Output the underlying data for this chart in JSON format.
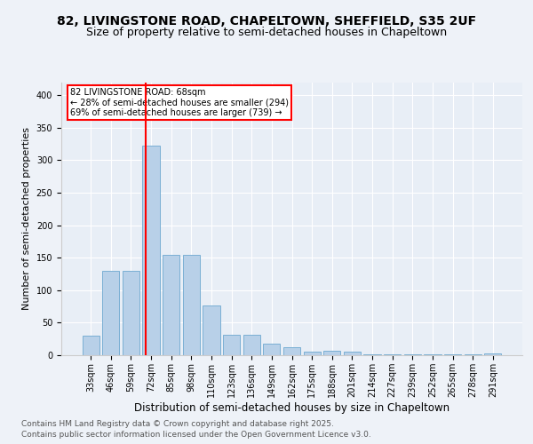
{
  "title1": "82, LIVINGSTONE ROAD, CHAPELTOWN, SHEFFIELD, S35 2UF",
  "title2": "Size of property relative to semi-detached houses in Chapeltown",
  "xlabel": "Distribution of semi-detached houses by size in Chapeltown",
  "ylabel": "Number of semi-detached properties",
  "categories": [
    "33sqm",
    "46sqm",
    "59sqm",
    "72sqm",
    "85sqm",
    "98sqm",
    "110sqm",
    "123sqm",
    "136sqm",
    "149sqm",
    "162sqm",
    "175sqm",
    "188sqm",
    "201sqm",
    "214sqm",
    "227sqm",
    "239sqm",
    "252sqm",
    "265sqm",
    "278sqm",
    "291sqm"
  ],
  "values": [
    30,
    130,
    130,
    323,
    155,
    155,
    77,
    32,
    32,
    18,
    12,
    6,
    7,
    6,
    1,
    1,
    1,
    1,
    1,
    1,
    3
  ],
  "bar_color": "#b8d0e8",
  "bar_edge_color": "#7aafd4",
  "annotation_line1": "82 LIVINGSTONE ROAD: 68sqm",
  "annotation_line2": "← 28% of semi-detached houses are smaller (294)",
  "annotation_line3": "69% of semi-detached houses are larger (739) →",
  "ylim": [
    0,
    420
  ],
  "yticks": [
    0,
    50,
    100,
    150,
    200,
    250,
    300,
    350,
    400
  ],
  "bg_color": "#eef2f8",
  "plot_bg_color": "#e8eef6",
  "footer1": "Contains HM Land Registry data © Crown copyright and database right 2025.",
  "footer2": "Contains public sector information licensed under the Open Government Licence v3.0.",
  "title1_fontsize": 10,
  "title2_fontsize": 9,
  "xlabel_fontsize": 8.5,
  "ylabel_fontsize": 8,
  "tick_fontsize": 7,
  "footer_fontsize": 6.5,
  "red_line_index": 2.72
}
